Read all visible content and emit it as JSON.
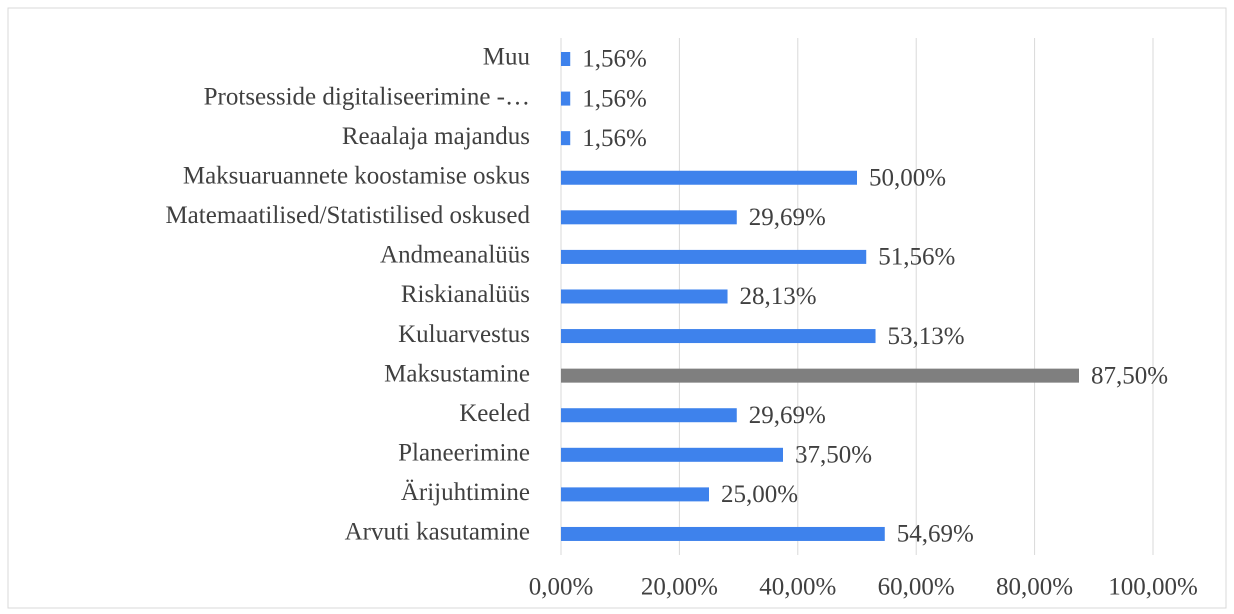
{
  "chart_data": {
    "type": "bar",
    "orientation": "horizontal",
    "categories": [
      "Muu",
      "Protsesside digitaliseerimine -…",
      "Reaalaja majandus",
      "Maksuaruannete koostamise oskus",
      "Matemaatilised/Statistilised oskused",
      "Andmeanalüüs",
      "Riskianalüüs",
      "Kuluarvestus",
      "Maksustamine",
      "Keeled",
      "Planeerimine",
      "Ärijuhtimine",
      "Arvuti kasutamine"
    ],
    "values": [
      1.56,
      1.56,
      1.56,
      50.0,
      29.69,
      51.56,
      28.13,
      53.13,
      87.5,
      29.69,
      37.5,
      25.0,
      54.69
    ],
    "value_labels": [
      "1,56%",
      "1,56%",
      "1,56%",
      "50,00%",
      "29,69%",
      "51,56%",
      "28,13%",
      "53,13%",
      "87,50%",
      "29,69%",
      "37,50%",
      "25,00%",
      "54,69%"
    ],
    "colors": [
      "#3e82ec",
      "#3e82ec",
      "#3e82ec",
      "#3e82ec",
      "#3e82ec",
      "#3e82ec",
      "#3e82ec",
      "#3e82ec",
      "#7f7f7f",
      "#3e82ec",
      "#3e82ec",
      "#3e82ec",
      "#3e82ec"
    ],
    "xlim": [
      0,
      100
    ],
    "xticks": [
      {
        "value": 0,
        "label": "0,00%"
      },
      {
        "value": 20,
        "label": "20,00%"
      },
      {
        "value": 40,
        "label": "40,00%"
      },
      {
        "value": 60,
        "label": "60,00%"
      },
      {
        "value": 80,
        "label": "80,00%"
      },
      {
        "value": 100,
        "label": "100,00%"
      }
    ],
    "grid": true
  }
}
